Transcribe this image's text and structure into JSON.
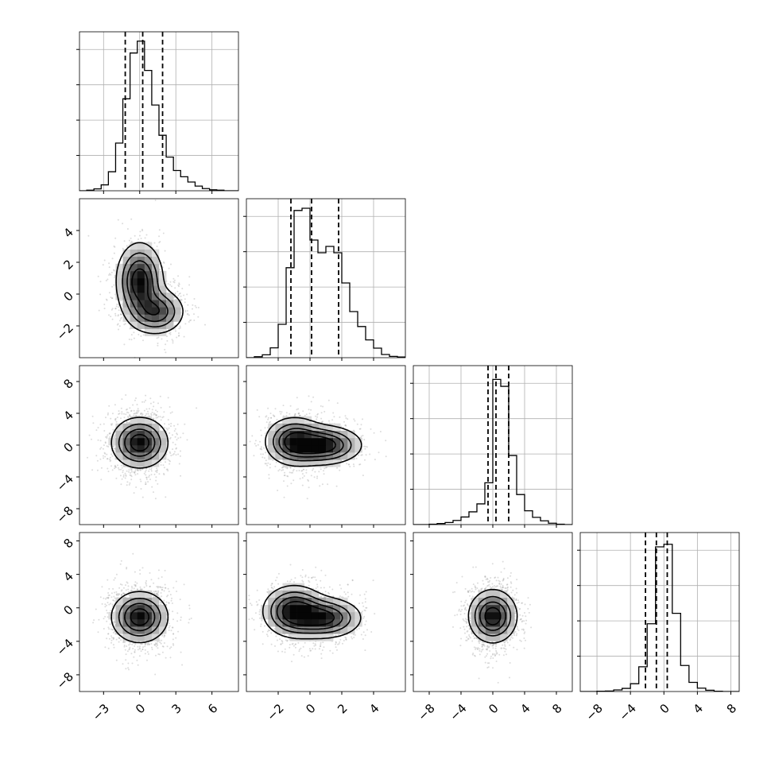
{
  "chart_data": {
    "type": "corner",
    "title": "",
    "parameters": [
      "",
      "",
      "",
      ""
    ],
    "axes": [
      {
        "range": [
          -5,
          8.2
        ],
        "ticks": [
          -3,
          0,
          3,
          6
        ],
        "tick_labels": [
          "−3",
          "0",
          "3",
          "6"
        ]
      },
      {
        "range": [
          -4,
          6
        ],
        "ticks": [
          -2,
          0,
          2,
          4
        ],
        "tick_labels": [
          "−2",
          "0",
          "2",
          "4"
        ]
      },
      {
        "range": [
          -10,
          10
        ],
        "ticks": [
          -8,
          -4,
          0,
          4,
          8
        ],
        "tick_labels": [
          "−8",
          "−4",
          "0",
          "4",
          "8"
        ]
      },
      {
        "range": [
          -10,
          9
        ],
        "ticks": [
          -8,
          -4,
          0,
          4,
          8
        ],
        "tick_labels": [
          "−8",
          "−4",
          "0",
          "4",
          "8"
        ]
      }
    ],
    "quantiles": [
      [
        -1.2,
        0.25,
        1.9
      ],
      [
        -1.2,
        0.1,
        1.8
      ],
      [
        -0.6,
        0.4,
        2.0
      ],
      [
        -2.2,
        -0.9,
        0.4
      ]
    ],
    "histograms": [
      {
        "x": [
          -5.0,
          -4.4,
          -3.8,
          -3.2,
          -2.6,
          -2.0,
          -1.4,
          -0.8,
          -0.2,
          0.4,
          1.0,
          1.6,
          2.2,
          2.8,
          3.4,
          4.0,
          4.6,
          5.2,
          5.8,
          6.4,
          7.0,
          7.6
        ],
        "values": [
          0,
          2,
          6,
          19,
          61,
          153,
          295,
          442,
          480,
          386,
          275,
          178,
          108,
          65,
          45,
          28,
          15,
          7,
          3,
          2,
          0,
          0
        ],
        "ylim": [
          0,
          510
        ]
      },
      {
        "x": [
          -4.0,
          -3.5,
          -3.0,
          -2.5,
          -2.0,
          -1.5,
          -1.0,
          -0.5,
          0.0,
          0.5,
          1.0,
          1.5,
          2.0,
          2.5,
          3.0,
          3.5,
          4.0,
          4.5,
          5.0,
          5.5
        ],
        "values": [
          0,
          3,
          9,
          31,
          105,
          283,
          463,
          470,
          370,
          330,
          350,
          330,
          235,
          145,
          98,
          56,
          30,
          10,
          4,
          2
        ],
        "ylim": [
          0,
          500
        ]
      },
      {
        "x": [
          -10,
          -9,
          -8,
          -7,
          -6,
          -5,
          -4,
          -3,
          -2,
          -1,
          0,
          1,
          2,
          3,
          4,
          5,
          6,
          7,
          8,
          9
        ],
        "values": [
          0,
          0,
          1,
          3,
          6,
          12,
          22,
          37,
          60,
          121,
          420,
          400,
          200,
          87,
          40,
          21,
          11,
          4,
          1,
          0
        ],
        "ylim": [
          0,
          460
        ]
      },
      {
        "x": [
          -10,
          -9,
          -8,
          -7,
          -6,
          -5,
          -4,
          -3,
          -2,
          -1,
          0,
          1,
          2,
          3,
          4,
          5,
          6,
          7,
          8
        ],
        "values": [
          0,
          0,
          1,
          2,
          6,
          12,
          30,
          95,
          260,
          555,
          565,
          300,
          100,
          35,
          13,
          5,
          1,
          0,
          0
        ],
        "ylim": [
          0,
          610
        ]
      }
    ],
    "contour_peaks": [
      {
        "row": 1,
        "col": 0,
        "x": 0.0,
        "y": 0.9
      },
      {
        "row": 2,
        "col": 0,
        "x": 0.0,
        "y": 0.3
      },
      {
        "row": 2,
        "col": 1,
        "x": 0.8,
        "y": 0.3
      },
      {
        "row": 3,
        "col": 0,
        "x": 0.0,
        "y": -1.1
      },
      {
        "row": 3,
        "col": 1,
        "x": -1.0,
        "y": -0.8
      },
      {
        "row": 3,
        "col": 2,
        "x": 0.0,
        "y": -1.1
      }
    ],
    "grid": true,
    "colors": {
      "hist": "#000000",
      "scatter": "#9a9a9a",
      "grid": "#b0b0b0"
    }
  }
}
